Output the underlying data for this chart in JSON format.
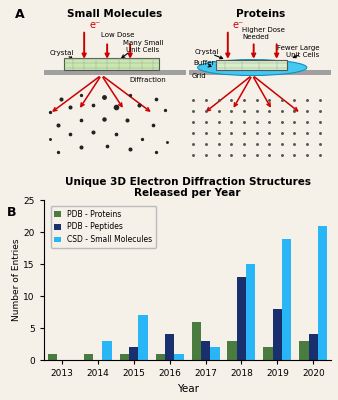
{
  "title": "Unique 3D Electron Diffraction Structures\nReleased per Year",
  "xlabel": "Year",
  "ylabel": "Number of Entries",
  "years": [
    2013,
    2014,
    2015,
    2016,
    2017,
    2018,
    2019,
    2020
  ],
  "pdb_proteins": [
    1,
    1,
    1,
    1,
    6,
    3,
    2,
    3
  ],
  "pdb_peptides": [
    0,
    0,
    2,
    4,
    3,
    13,
    8,
    4
  ],
  "csd_small": [
    0,
    3,
    7,
    1,
    2,
    15,
    19,
    21
  ],
  "color_proteins": "#4a7c3f",
  "color_peptides": "#1a2f6e",
  "color_csd": "#29b6f6",
  "ylim": [
    0,
    25
  ],
  "yticks": [
    0,
    5,
    10,
    15,
    20,
    25
  ],
  "bg_color": "#f5f0e8",
  "panel_a_label": "A",
  "panel_b_label": "B",
  "legend_labels": [
    "PDB - Proteins",
    "PDB - Peptides",
    "CSD - Small Molecules"
  ],
  "sm_crystal_color": "#c8e8b0",
  "pr_crystal_color": "#d8eec8",
  "buffer_color": "#45c8f0",
  "grid_bar_color": "#a0a0a0",
  "arrow_color_red": "#cc0000",
  "arrow_color_black": "#000000"
}
